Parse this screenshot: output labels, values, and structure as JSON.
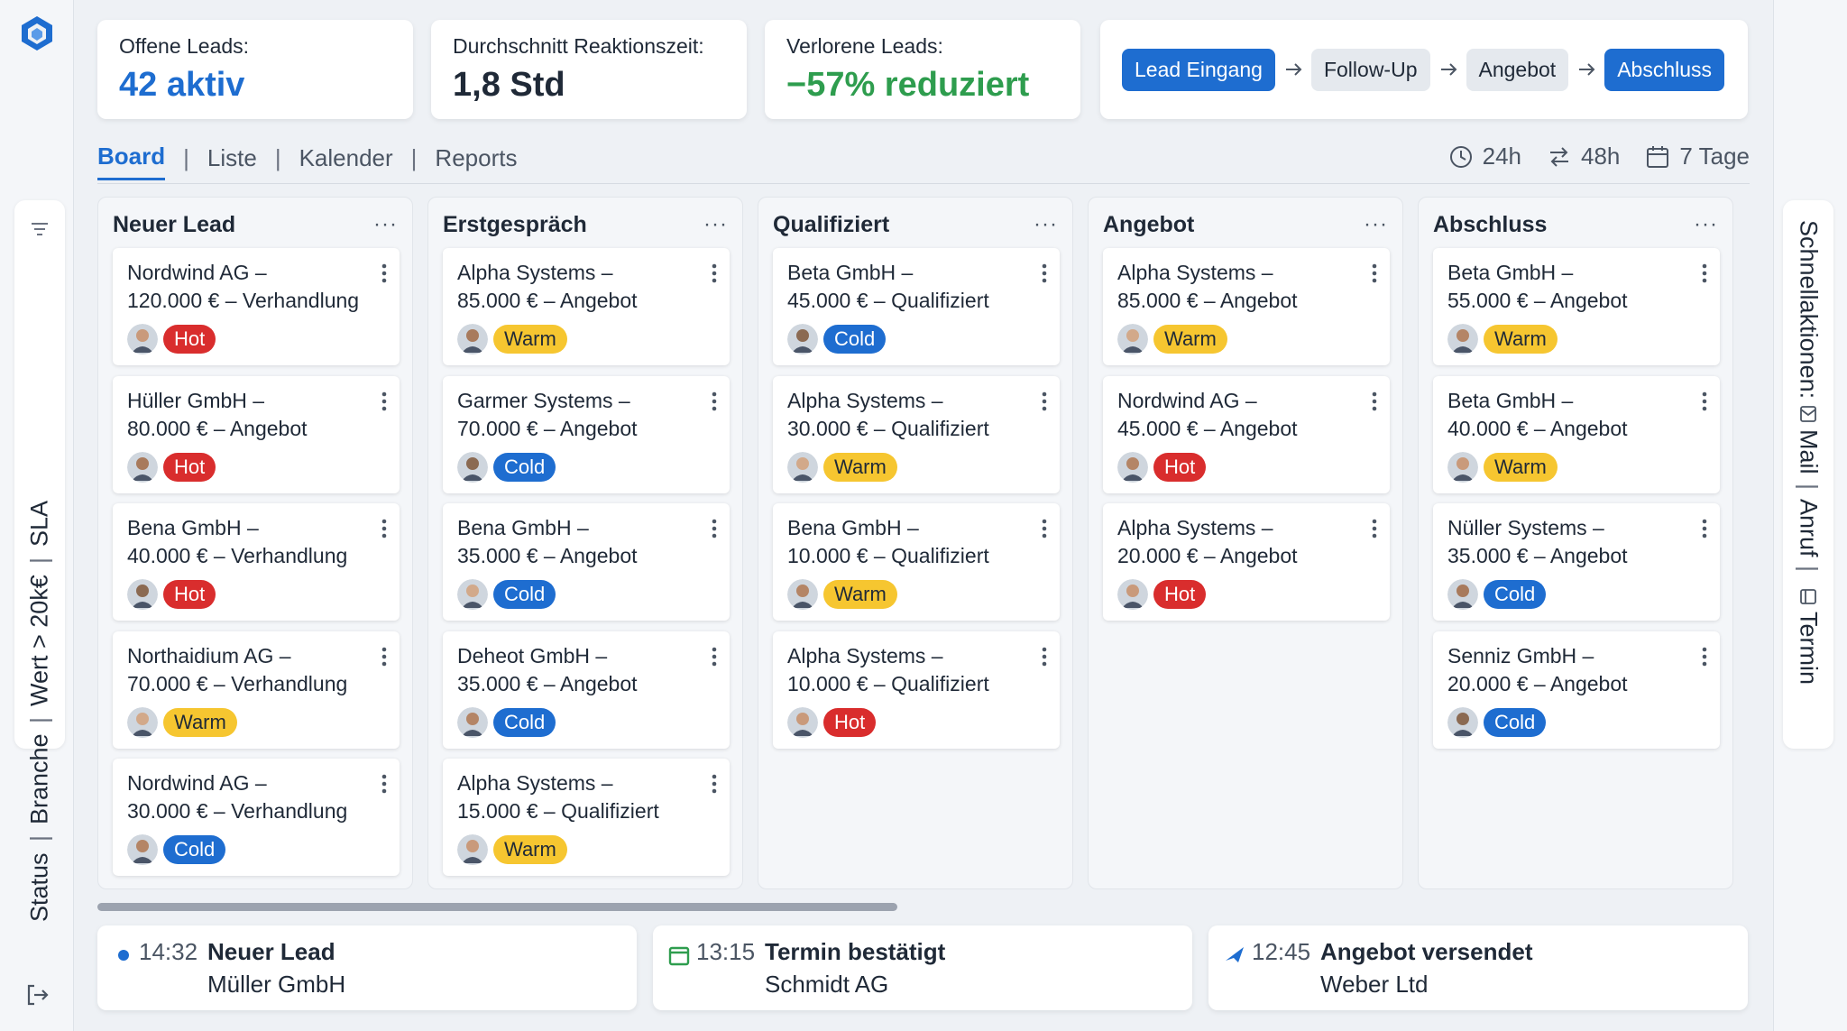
{
  "stats": [
    {
      "label": "Offene Leads:",
      "value": "42 aktiv",
      "color": "#1e6dd0"
    },
    {
      "label": "Durchschnitt Reaktionszeit:",
      "value": "1,8 Std",
      "color": "#1f2937"
    },
    {
      "label": "Verlorene Leads:",
      "value": "−57% reduziert",
      "color": "#2e9d4e"
    }
  ],
  "pipeline": [
    "Lead Eingang",
    "Follow-Up",
    "Angebot",
    "Abschluss"
  ],
  "tabs": [
    "Board",
    "Liste",
    "Kalender",
    "Reports"
  ],
  "time_filters": [
    "24h",
    "48h",
    "7 Tage"
  ],
  "left_filters": [
    "Status",
    "Branche",
    "Wert > 20k€",
    "SLA"
  ],
  "quick_actions": {
    "title": "Schnellaktionen:",
    "items": [
      "Mail",
      "Anruf",
      "Termin"
    ]
  },
  "columns": [
    {
      "title": "Neuer Lead",
      "menu": "···",
      "cards": [
        {
          "line1": "Nordwind AG –",
          "line2": "120.000 € – Verhandlung",
          "tag": "Hot"
        },
        {
          "line1": "Hüller GmbH –",
          "line2": "80.000 € – Angebot",
          "tag": "Hot"
        },
        {
          "line1": "Bena GmbH –",
          "line2": "40.000 € – Verhandlung",
          "tag": "Hot"
        },
        {
          "line1": "Northaidium AG –",
          "line2": "70.000 € – Verhandlung",
          "tag": "Warm"
        },
        {
          "line1": "Nordwind AG –",
          "line2": "30.000 € – Verhandlung",
          "tag": "Cold"
        }
      ]
    },
    {
      "title": "Erstgespräch",
      "menu": "···",
      "cards": [
        {
          "line1": "Alpha Systems –",
          "line2": "85.000 € – Angebot",
          "tag": "Warm"
        },
        {
          "line1": "Garmer Systems –",
          "line2": "70.000 € – Angebot",
          "tag": "Cold"
        },
        {
          "line1": "Bena GmbH –",
          "line2": "35.000 € – Angebot",
          "tag": "Cold"
        },
        {
          "line1": "Deheot GmbH –",
          "line2": "35.000 € – Angebot",
          "tag": "Cold"
        },
        {
          "line1": "Alpha Systems –",
          "line2": "15.000 € – Qualifiziert",
          "tag": "Warm"
        }
      ]
    },
    {
      "title": "Qualifiziert",
      "menu": "···",
      "cards": [
        {
          "line1": "Beta GmbH –",
          "line2": "45.000 € – Qualifiziert",
          "tag": "Cold"
        },
        {
          "line1": "Alpha Systems –",
          "line2": "30.000 € – Qualifiziert",
          "tag": "Warm"
        },
        {
          "line1": "Bena GmbH –",
          "line2": "10.000 € – Qualifiziert",
          "tag": "Warm"
        },
        {
          "line1": "Alpha Systems –",
          "line2": "10.000 € – Qualifiziert",
          "tag": "Hot"
        }
      ]
    },
    {
      "title": "Angebot",
      "menu": "···",
      "cards": [
        {
          "line1": "Alpha Systems –",
          "line2": "85.000 € – Angebot",
          "tag": "Warm"
        },
        {
          "line1": "Nordwind AG –",
          "line2": "45.000 € – Angebot",
          "tag": "Hot"
        },
        {
          "line1": "Alpha Systems –",
          "line2": "20.000 € – Angebot",
          "tag": "Hot"
        }
      ]
    },
    {
      "title": "Abschluss",
      "menu": "···",
      "cards": [
        {
          "line1": "Beta GmbH –",
          "line2": "55.000 € – Angebot",
          "tag": "Warm"
        },
        {
          "line1": "Beta GmbH –",
          "line2": "40.000 € – Angebot",
          "tag": "Warm"
        },
        {
          "line1": "Nüller Systems –",
          "line2": "35.000 € – Angebot",
          "tag": "Cold"
        },
        {
          "line1": "Senniz GmbH –",
          "line2": "20.000 € – Angebot",
          "tag": "Cold"
        }
      ]
    }
  ],
  "activity": [
    {
      "time": "14:32",
      "title": "Neuer Lead",
      "sub": "Müller GmbH",
      "icon": "dot-icon"
    },
    {
      "time": "13:15",
      "title": "Termin bestätigt",
      "sub": "Schmidt AG",
      "icon": "calendar-icon"
    },
    {
      "time": "12:45",
      "title": "Angebot versendet",
      "sub": "Weber Ltd",
      "icon": "send-icon"
    }
  ],
  "colors": {
    "accent": "#1e6dd0",
    "hot": "#d92d2d",
    "warm": "#f6c630",
    "cold": "#1e6dd0",
    "success": "#2e9d4e"
  }
}
